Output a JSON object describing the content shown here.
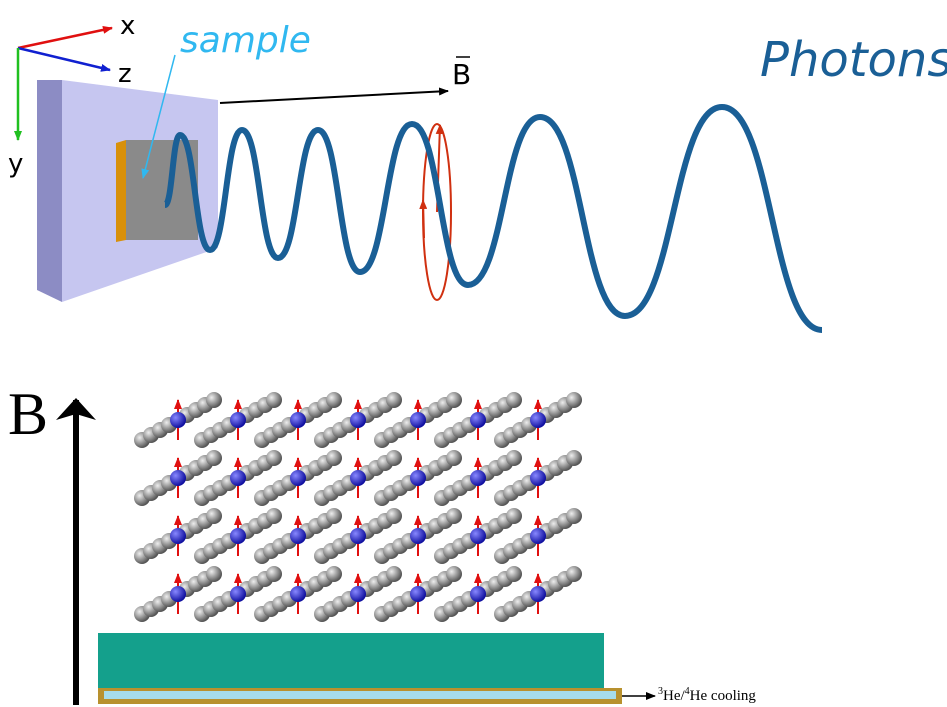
{
  "axes": {
    "x": "x",
    "z": "z",
    "y": "y"
  },
  "top": {
    "sample_label": "sample",
    "field_label": "B",
    "photons_label": "Photons"
  },
  "bottom": {
    "field_label": "B",
    "cooling_label": {
      "sup1": "3",
      "part1": "He/",
      "sup2": "4",
      "part2": "He cooling"
    }
  }
}
